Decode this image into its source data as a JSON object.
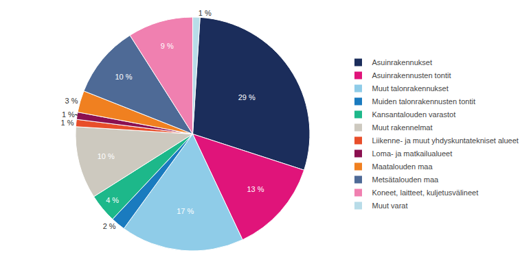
{
  "chart_data": {
    "type": "pie",
    "categories": [
      "Asuinrakennukset",
      "Asuinrakennusten tontit",
      "Muut talonrakennukset",
      "Muiden talonrakennusten tontit",
      "Kansantalouden varastot",
      "Muut rakennelmat",
      "Liikenne- ja muut yhdyskuntatekniset alueet",
      "Loma- ja matkailualueet",
      "Maatalouden maa",
      "Metsätalouden maa",
      "Koneet, laitteet, kuljetusvälineet",
      "Muut varat"
    ],
    "values": [
      29,
      13,
      17,
      2,
      4,
      10,
      1,
      1,
      3,
      10,
      9,
      1
    ],
    "value_labels": [
      "29 %",
      "13 %",
      "17 %",
      "2 %",
      "4 %",
      "10 %",
      "1 %",
      "1 %",
      "3 %",
      "10 %",
      "9 %",
      "1 %"
    ],
    "colors": [
      "#1b2d5b",
      "#e0147a",
      "#8fcce8",
      "#1a7bbf",
      "#1db88a",
      "#cdc9bf",
      "#e84e2a",
      "#8b1050",
      "#f08020",
      "#4e6a96",
      "#f080b0",
      "#b8dce8"
    ],
    "data_labels": true,
    "legend": "right"
  }
}
